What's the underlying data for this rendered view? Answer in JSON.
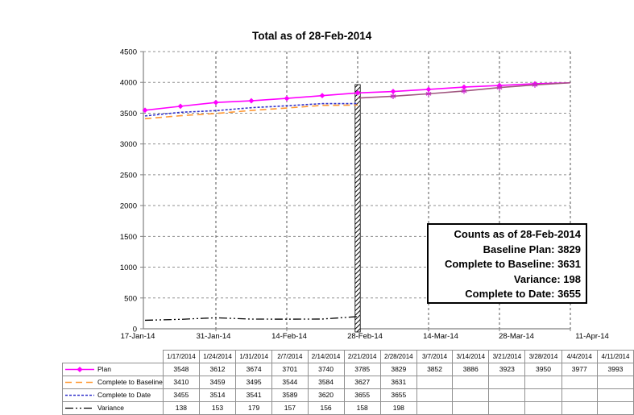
{
  "chart_data": {
    "type": "line",
    "title": "Total as of 28-Feb-2014",
    "x_categories": [
      "1/17/2014",
      "1/24/2014",
      "1/31/2014",
      "2/7/2014",
      "2/14/2014",
      "2/21/2014",
      "2/28/2014",
      "3/7/2014",
      "3/14/2014",
      "3/21/2014",
      "3/28/2014",
      "4/4/2014",
      "4/11/2014"
    ],
    "x_axis_tick_labels": [
      "17-Jan-14",
      "31-Jan-14",
      "14-Feb-14",
      "28-Feb-14",
      "14-Mar-14",
      "28-Mar-14",
      "11-Apr-14"
    ],
    "y_axis": {
      "min": 0,
      "max": 4500,
      "tick_step": 500,
      "tick_labels": [
        "0",
        "500",
        "1000",
        "1500",
        "2000",
        "2500",
        "3000",
        "3500",
        "4000",
        "4500"
      ]
    },
    "grid": {
      "horizontal": true,
      "vertical": true
    },
    "status_marker": {
      "category": "2/28/2014",
      "type": "hatched-vertical-bar"
    },
    "series": [
      {
        "name": "Plan",
        "color": "#FF00FF",
        "line_style": "solid",
        "marker": "diamond",
        "marker_color": "#FF00FF",
        "in_table": true,
        "start_index": 0,
        "values": [
          3548,
          3612,
          3674,
          3701,
          3740,
          3785,
          3829,
          3852,
          3886,
          3923,
          3950,
          3977,
          3993
        ]
      },
      {
        "name": "Complete to Baseline",
        "color": "#FF9933",
        "line_style": "long-dash",
        "marker": "none",
        "in_table": true,
        "start_index": 0,
        "values": [
          3410,
          3459,
          3495,
          3544,
          3584,
          3627,
          3631
        ]
      },
      {
        "name": "Complete to Date",
        "color": "#3333CC",
        "line_style": "short-dash",
        "marker": "none",
        "in_table": true,
        "start_index": 0,
        "values": [
          3455,
          3514,
          3541,
          3589,
          3620,
          3655,
          3655
        ]
      },
      {
        "name": "Variance",
        "color": "#000000",
        "line_style": "dash-dot-dot",
        "marker": "none",
        "in_table": true,
        "start_index": 0,
        "values": [
          138,
          153,
          179,
          157,
          156,
          158,
          198
        ]
      },
      {
        "name": "",
        "color": "#A0557F",
        "line_style": "solid",
        "marker": "star",
        "marker_color": "#CC22CC",
        "in_table": false,
        "start_index": 6,
        "values": [
          3745,
          3775,
          3815,
          3860,
          3915,
          3960,
          3993
        ]
      }
    ]
  },
  "annotation_box": {
    "lines": [
      "Counts as of 28-Feb-2014",
      "Baseline Plan: 3829",
      "Complete to Baseline: 3631",
      "Variance: 198",
      "Complete to Date: 3655"
    ]
  }
}
